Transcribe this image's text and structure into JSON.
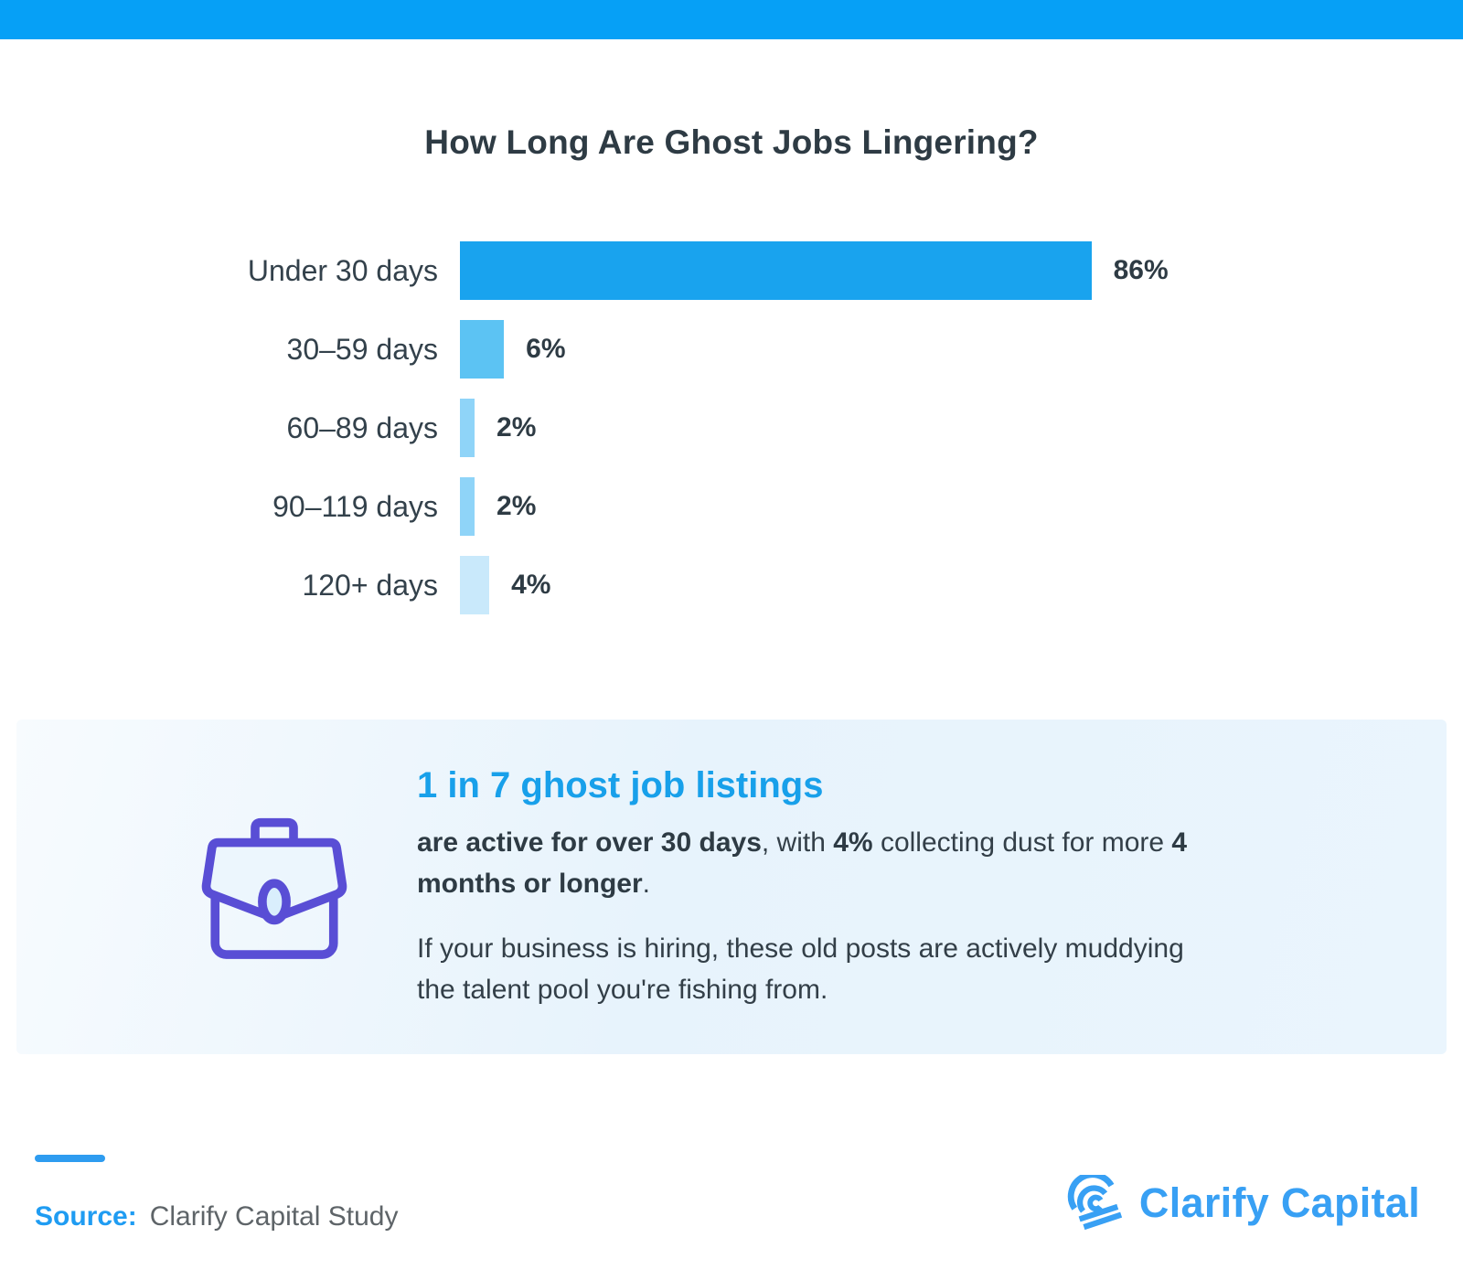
{
  "banner": {
    "color": "#06a0f6"
  },
  "chart_data": {
    "type": "bar",
    "orientation": "horizontal",
    "title": "How Long Are Ghost Jobs Lingering?",
    "categories": [
      "Under 30 days",
      "30–59 days",
      "60–89 days",
      "90–119 days",
      "120+ days"
    ],
    "values": [
      86,
      6,
      2,
      2,
      4
    ],
    "value_labels": [
      "86%",
      "6%",
      "2%",
      "2%",
      "4%"
    ],
    "bar_colors": [
      "#19a3ee",
      "#5cc3f3",
      "#8fd4f8",
      "#8fd4f8",
      "#c9e9fb"
    ],
    "xlim": [
      0,
      100
    ],
    "grid": false,
    "legend": false,
    "value_label_position": "right-of-bar"
  },
  "callout": {
    "icon": "briefcase-icon",
    "icon_color": "#594ed5",
    "heading": "1 in 7 ghost job listings",
    "heading_color": "#18a0ea",
    "paragraph1_segments": [
      {
        "text": "are active for over 30 days",
        "bold": true
      },
      {
        "text": ", with ",
        "bold": false
      },
      {
        "text": "4%",
        "bold": true
      },
      {
        "text": " collecting dust for more ",
        "bold": false
      },
      {
        "text": "4 months or longer",
        "bold": true
      },
      {
        "text": ".",
        "bold": false
      }
    ],
    "paragraph2": "If your business is hiring, these old posts are actively muddying the talent pool you're fishing from."
  },
  "footer": {
    "source_label": "Source:",
    "source_text": "Clarify Capital Study",
    "brand_name": "Clarify Capital",
    "brand_color": "#38a0f4"
  }
}
